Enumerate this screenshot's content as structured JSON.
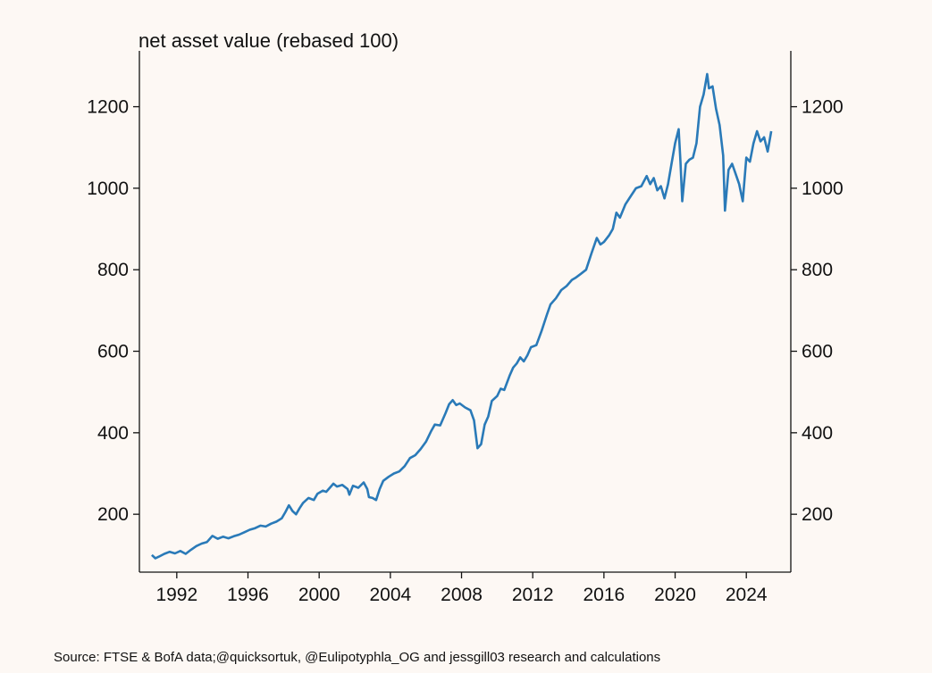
{
  "chart_data": {
    "type": "line",
    "title": "net asset value (rebased 100)",
    "xlabel": "",
    "ylabel": "",
    "xlim": [
      1989.9,
      2026.5
    ],
    "ylim": [
      58,
      1337
    ],
    "x_ticks": [
      1992,
      1996,
      2000,
      2004,
      2008,
      2012,
      2016,
      2020,
      2024
    ],
    "x_tick_labels": [
      "1992",
      "1996",
      "2000",
      "2004",
      "2008",
      "2012",
      "2016",
      "2020",
      "2024"
    ],
    "y_ticks": [
      200,
      400,
      600,
      800,
      1000,
      1200
    ],
    "y_tick_labels": [
      "200",
      "400",
      "600",
      "800",
      "1000",
      "1200"
    ],
    "secondary_y_ticks": [
      200,
      400,
      600,
      800,
      1000,
      1200
    ],
    "secondary_y_tick_labels": [
      "200",
      "400",
      "600",
      "800",
      "1000",
      "1200"
    ],
    "grid": false,
    "series": [
      {
        "name": "net asset value",
        "color": "#2a7ab8",
        "points": [
          [
            1990.6,
            100
          ],
          [
            1990.8,
            92
          ],
          [
            1991.0,
            96
          ],
          [
            1991.3,
            103
          ],
          [
            1991.6,
            108
          ],
          [
            1991.9,
            104
          ],
          [
            1992.2,
            110
          ],
          [
            1992.5,
            103
          ],
          [
            1992.8,
            113
          ],
          [
            1993.1,
            122
          ],
          [
            1993.4,
            128
          ],
          [
            1993.7,
            132
          ],
          [
            1994.0,
            147
          ],
          [
            1994.3,
            140
          ],
          [
            1994.6,
            145
          ],
          [
            1994.9,
            141
          ],
          [
            1995.2,
            146
          ],
          [
            1995.5,
            150
          ],
          [
            1995.8,
            156
          ],
          [
            1996.1,
            162
          ],
          [
            1996.4,
            166
          ],
          [
            1996.7,
            172
          ],
          [
            1997.0,
            170
          ],
          [
            1997.3,
            177
          ],
          [
            1997.6,
            182
          ],
          [
            1997.9,
            190
          ],
          [
            1998.1,
            205
          ],
          [
            1998.3,
            222
          ],
          [
            1998.5,
            208
          ],
          [
            1998.7,
            200
          ],
          [
            1998.9,
            215
          ],
          [
            1999.1,
            228
          ],
          [
            1999.4,
            240
          ],
          [
            1999.7,
            235
          ],
          [
            1999.9,
            250
          ],
          [
            2000.2,
            258
          ],
          [
            2000.4,
            255
          ],
          [
            2000.6,
            265
          ],
          [
            2000.8,
            275
          ],
          [
            2001.0,
            268
          ],
          [
            2001.3,
            272
          ],
          [
            2001.6,
            262
          ],
          [
            2001.7,
            248
          ],
          [
            2001.9,
            270
          ],
          [
            2002.2,
            265
          ],
          [
            2002.5,
            278
          ],
          [
            2002.7,
            262
          ],
          [
            2002.8,
            242
          ],
          [
            2003.0,
            240
          ],
          [
            2003.2,
            235
          ],
          [
            2003.4,
            262
          ],
          [
            2003.6,
            282
          ],
          [
            2003.9,
            292
          ],
          [
            2004.2,
            300
          ],
          [
            2004.5,
            305
          ],
          [
            2004.8,
            318
          ],
          [
            2005.1,
            338
          ],
          [
            2005.4,
            345
          ],
          [
            2005.7,
            360
          ],
          [
            2006.0,
            378
          ],
          [
            2006.3,
            405
          ],
          [
            2006.5,
            420
          ],
          [
            2006.8,
            418
          ],
          [
            2007.1,
            448
          ],
          [
            2007.3,
            470
          ],
          [
            2007.5,
            480
          ],
          [
            2007.7,
            468
          ],
          [
            2007.9,
            472
          ],
          [
            2008.2,
            462
          ],
          [
            2008.5,
            455
          ],
          [
            2008.7,
            430
          ],
          [
            2008.8,
            395
          ],
          [
            2008.9,
            362
          ],
          [
            2009.1,
            372
          ],
          [
            2009.3,
            420
          ],
          [
            2009.5,
            440
          ],
          [
            2009.7,
            478
          ],
          [
            2010.0,
            490
          ],
          [
            2010.2,
            508
          ],
          [
            2010.4,
            505
          ],
          [
            2010.7,
            540
          ],
          [
            2010.9,
            560
          ],
          [
            2011.1,
            570
          ],
          [
            2011.3,
            585
          ],
          [
            2011.5,
            575
          ],
          [
            2011.7,
            590
          ],
          [
            2011.9,
            610
          ],
          [
            2012.2,
            615
          ],
          [
            2012.5,
            650
          ],
          [
            2012.8,
            690
          ],
          [
            2013.0,
            715
          ],
          [
            2013.3,
            730
          ],
          [
            2013.6,
            750
          ],
          [
            2013.9,
            760
          ],
          [
            2014.2,
            775
          ],
          [
            2014.4,
            780
          ],
          [
            2014.7,
            790
          ],
          [
            2015.0,
            800
          ],
          [
            2015.3,
            840
          ],
          [
            2015.6,
            878
          ],
          [
            2015.8,
            862
          ],
          [
            2016.0,
            868
          ],
          [
            2016.3,
            885
          ],
          [
            2016.5,
            900
          ],
          [
            2016.7,
            940
          ],
          [
            2016.9,
            928
          ],
          [
            2017.2,
            960
          ],
          [
            2017.5,
            980
          ],
          [
            2017.8,
            1000
          ],
          [
            2018.1,
            1005
          ],
          [
            2018.4,
            1030
          ],
          [
            2018.6,
            1010
          ],
          [
            2018.8,
            1025
          ],
          [
            2019.0,
            995
          ],
          [
            2019.2,
            1005
          ],
          [
            2019.4,
            975
          ],
          [
            2019.6,
            1010
          ],
          [
            2019.8,
            1060
          ],
          [
            2020.0,
            1110
          ],
          [
            2020.2,
            1145
          ],
          [
            2020.3,
            1065
          ],
          [
            2020.4,
            968
          ],
          [
            2020.6,
            1060
          ],
          [
            2020.8,
            1070
          ],
          [
            2021.0,
            1075
          ],
          [
            2021.2,
            1110
          ],
          [
            2021.4,
            1200
          ],
          [
            2021.6,
            1230
          ],
          [
            2021.8,
            1280
          ],
          [
            2021.9,
            1245
          ],
          [
            2022.1,
            1250
          ],
          [
            2022.3,
            1195
          ],
          [
            2022.5,
            1155
          ],
          [
            2022.7,
            1080
          ],
          [
            2022.8,
            945
          ],
          [
            2023.0,
            1045
          ],
          [
            2023.2,
            1060
          ],
          [
            2023.4,
            1035
          ],
          [
            2023.6,
            1010
          ],
          [
            2023.8,
            968
          ],
          [
            2024.0,
            1075
          ],
          [
            2024.2,
            1065
          ],
          [
            2024.4,
            1110
          ],
          [
            2024.6,
            1140
          ],
          [
            2024.8,
            1115
          ],
          [
            2025.0,
            1125
          ],
          [
            2025.2,
            1090
          ],
          [
            2025.4,
            1140
          ]
        ]
      }
    ]
  },
  "source_note": "Source: FTSE & BofA data;@quicksortuk, @Eulipotyphla_OG and jessgill03 research and calculations"
}
